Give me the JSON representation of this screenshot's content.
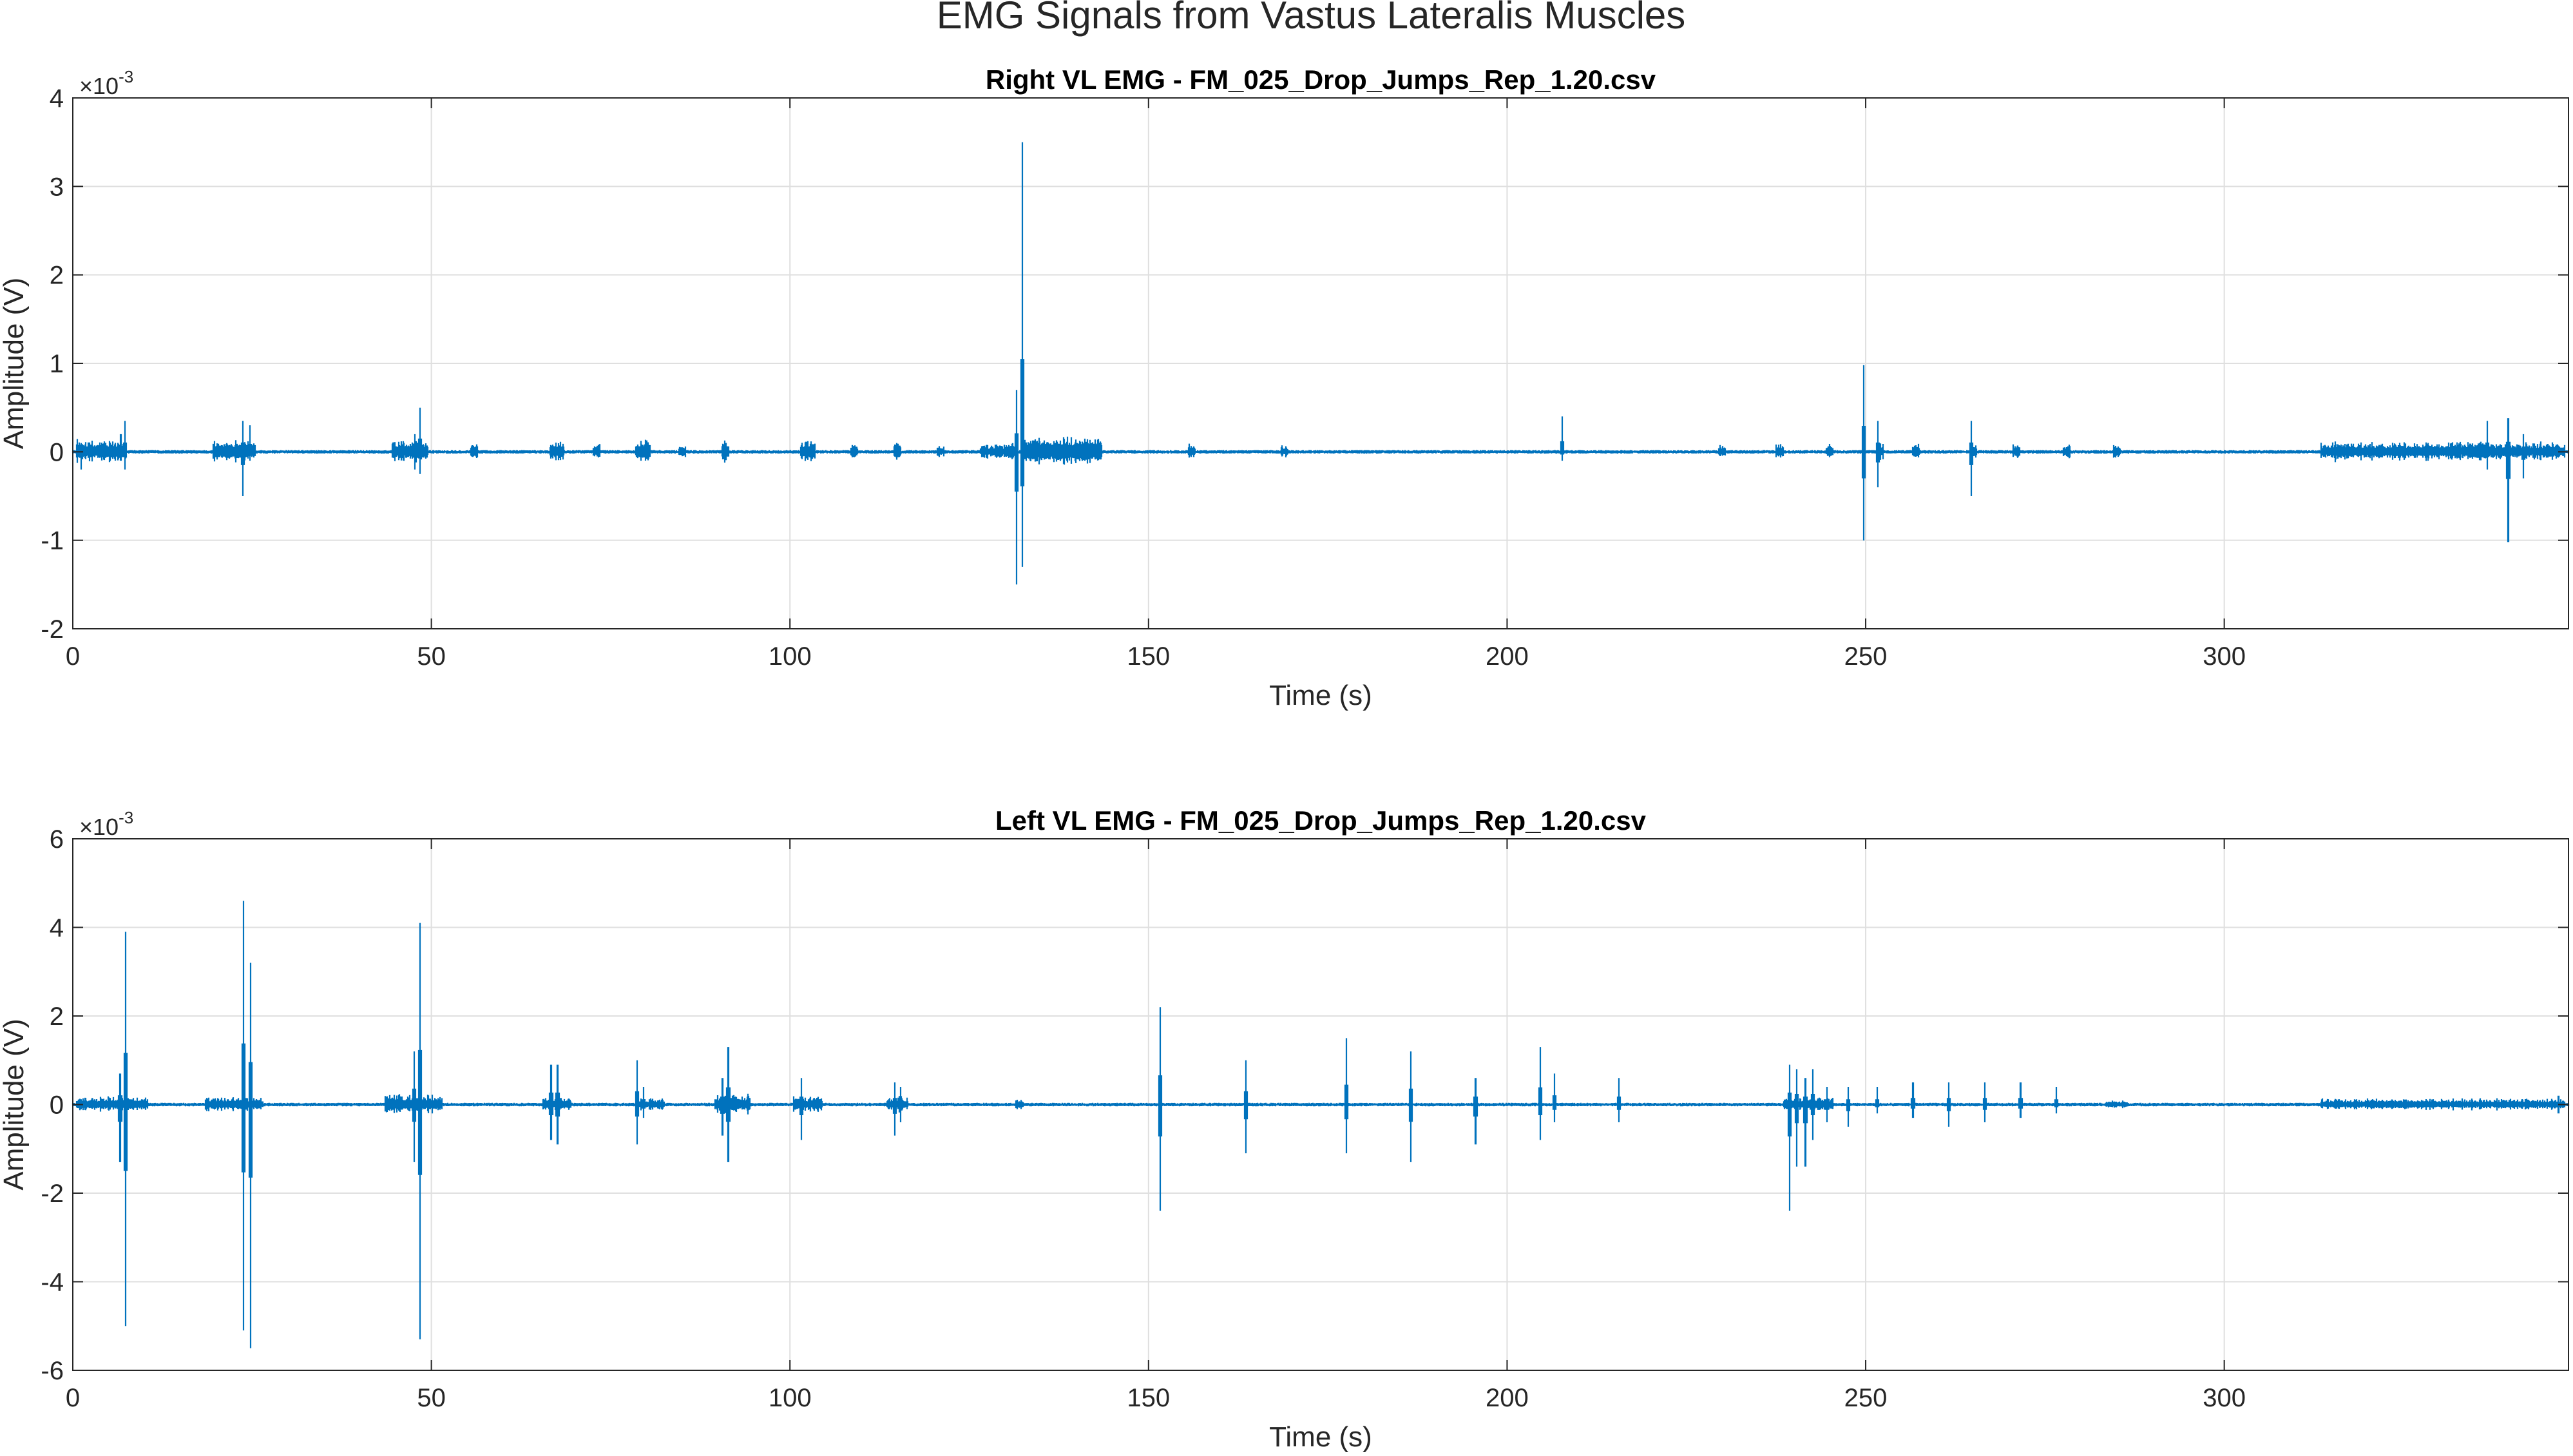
{
  "figure_title": "EMG Signals from Vastus Lateralis Muscles",
  "line_color": "#0072BD",
  "chart_data": [
    {
      "type": "line",
      "title": "Right VL EMG - FM_025_Drop_Jumps_Rep_1.20.csv",
      "xlabel": "Time (s)",
      "ylabel": "Amplitude (V)",
      "xlim": [
        0,
        348
      ],
      "ylim": [
        -0.002,
        0.004
      ],
      "y_exponent_label": "×10⁻³",
      "y_exponent_base": "×10",
      "y_exponent_power": "-3",
      "x_ticks": [
        {
          "value": 0,
          "label": "0"
        },
        {
          "value": 50,
          "label": "50"
        },
        {
          "value": 100,
          "label": "100"
        },
        {
          "value": 150,
          "label": "150"
        },
        {
          "value": 200,
          "label": "200"
        },
        {
          "value": 250,
          "label": "250"
        },
        {
          "value": 300,
          "label": "300"
        }
      ],
      "y_ticks": [
        {
          "value": -0.002,
          "label": "-2"
        },
        {
          "value": -0.001,
          "label": "-1"
        },
        {
          "value": 0,
          "label": "0"
        },
        {
          "value": 0.001,
          "label": "1"
        },
        {
          "value": 0.002,
          "label": "2"
        },
        {
          "value": 0.003,
          "label": "3"
        },
        {
          "value": 0.004,
          "label": "4"
        }
      ],
      "grid": true,
      "noise_amplitude": 2e-05,
      "activity_bursts": [
        {
          "start": 0.5,
          "end": 7.5,
          "amp": 0.00015
        },
        {
          "start": 19.5,
          "end": 25.5,
          "amp": 0.00015
        },
        {
          "start": 44.5,
          "end": 49.5,
          "amp": 0.00015
        },
        {
          "start": 55.5,
          "end": 56.5,
          "amp": 0.00012
        },
        {
          "start": 66.5,
          "end": 68.5,
          "amp": 0.00015
        },
        {
          "start": 72.5,
          "end": 73.5,
          "amp": 0.0001
        },
        {
          "start": 78.5,
          "end": 80.5,
          "amp": 0.00015
        },
        {
          "start": 84.5,
          "end": 85.5,
          "amp": 0.0001
        },
        {
          "start": 90.5,
          "end": 91.5,
          "amp": 0.00015
        },
        {
          "start": 101.5,
          "end": 103.5,
          "amp": 0.00015
        },
        {
          "start": 108.5,
          "end": 109.5,
          "amp": 0.0001
        },
        {
          "start": 114.5,
          "end": 115.5,
          "amp": 0.00012
        },
        {
          "start": 120.5,
          "end": 121.5,
          "amp": 0.0001
        },
        {
          "start": 126.5,
          "end": 131.5,
          "amp": 0.0001
        },
        {
          "start": 132.5,
          "end": 143.5,
          "amp": 0.0002
        },
        {
          "start": 155.5,
          "end": 156.5,
          "amp": 0.0001
        },
        {
          "start": 168.5,
          "end": 169.5,
          "amp": 8e-05
        },
        {
          "start": 229.5,
          "end": 230.5,
          "amp": 0.0001
        },
        {
          "start": 237.5,
          "end": 238.5,
          "amp": 0.0001
        },
        {
          "start": 244.5,
          "end": 245.5,
          "amp": 0.0001
        },
        {
          "start": 251.5,
          "end": 252.5,
          "amp": 0.0001
        },
        {
          "start": 256.5,
          "end": 257.5,
          "amp": 0.0001
        },
        {
          "start": 264.5,
          "end": 265.5,
          "amp": 0.0001
        },
        {
          "start": 270.5,
          "end": 271.5,
          "amp": 0.0001
        },
        {
          "start": 277.5,
          "end": 278.5,
          "amp": 0.0001
        },
        {
          "start": 284.5,
          "end": 285.5,
          "amp": 0.0001
        },
        {
          "start": 313.5,
          "end": 347.5,
          "amp": 0.00012
        }
      ],
      "spikes": [
        {
          "x": 1.2,
          "max": 0.0001,
          "min": -0.0002
        },
        {
          "x": 6.7,
          "max": 0.0002,
          "min": -0.0001
        },
        {
          "x": 7.3,
          "max": 0.00035,
          "min": -0.0002
        },
        {
          "x": 23.7,
          "max": 0.00035,
          "min": -0.0005
        },
        {
          "x": 24.7,
          "max": 0.0003,
          "min": -0.0001
        },
        {
          "x": 47.7,
          "max": 0.0002,
          "min": -0.0002
        },
        {
          "x": 48.4,
          "max": 0.0005,
          "min": -0.00025
        },
        {
          "x": 131.6,
          "max": 0.0007,
          "min": -0.0015
        },
        {
          "x": 132.4,
          "max": 0.0035,
          "min": -0.0013
        },
        {
          "x": 207.7,
          "max": 0.0004,
          "min": -0.0001
        },
        {
          "x": 249.7,
          "max": 0.00098,
          "min": -0.001
        },
        {
          "x": 251.7,
          "max": 0.00035,
          "min": -0.0004
        },
        {
          "x": 264.7,
          "max": 0.00035,
          "min": -0.0005
        },
        {
          "x": 336.7,
          "max": 0.00035,
          "min": -0.0002
        },
        {
          "x": 339.6,
          "max": 0.00038,
          "min": -0.00102
        },
        {
          "x": 341.7,
          "max": 0.0002,
          "min": -0.0003
        }
      ]
    },
    {
      "type": "line",
      "title": "Left VL EMG - FM_025_Drop_Jumps_Rep_1.20.csv",
      "xlabel": "Time (s)",
      "ylabel": "Amplitude (V)",
      "xlim": [
        0,
        348
      ],
      "ylim": [
        -0.006,
        0.006
      ],
      "y_exponent_label": "×10⁻³",
      "y_exponent_base": "×10",
      "y_exponent_power": "-3",
      "x_ticks": [
        {
          "value": 0,
          "label": "0"
        },
        {
          "value": 50,
          "label": "50"
        },
        {
          "value": 100,
          "label": "100"
        },
        {
          "value": 150,
          "label": "150"
        },
        {
          "value": 200,
          "label": "200"
        },
        {
          "value": 250,
          "label": "250"
        },
        {
          "value": 300,
          "label": "300"
        }
      ],
      "y_ticks": [
        {
          "value": -0.006,
          "label": "-6"
        },
        {
          "value": -0.004,
          "label": "-4"
        },
        {
          "value": -0.002,
          "label": "-2"
        },
        {
          "value": 0,
          "label": "0"
        },
        {
          "value": 0.002,
          "label": "2"
        },
        {
          "value": 0.004,
          "label": "4"
        },
        {
          "value": 0.006,
          "label": "6"
        }
      ],
      "grid": true,
      "noise_amplitude": 4e-05,
      "activity_bursts": [
        {
          "start": 0.5,
          "end": 10.5,
          "amp": 0.0002
        },
        {
          "start": 18.5,
          "end": 26.5,
          "amp": 0.0002
        },
        {
          "start": 43.5,
          "end": 51.5,
          "amp": 0.00025
        },
        {
          "start": 65.5,
          "end": 69.5,
          "amp": 0.0002
        },
        {
          "start": 78.5,
          "end": 82.5,
          "amp": 0.00015
        },
        {
          "start": 89.5,
          "end": 94.5,
          "amp": 0.00025
        },
        {
          "start": 100.5,
          "end": 104.5,
          "amp": 0.0002
        },
        {
          "start": 113.5,
          "end": 116.5,
          "amp": 0.0002
        },
        {
          "start": 131.5,
          "end": 132.5,
          "amp": 0.00015
        },
        {
          "start": 238.5,
          "end": 245.5,
          "amp": 0.0002
        },
        {
          "start": 283.5,
          "end": 286.5,
          "amp": 0.00012
        },
        {
          "start": 313.5,
          "end": 347.5,
          "amp": 0.00015
        }
      ],
      "spikes": [
        {
          "x": 6.6,
          "max": 0.0007,
          "min": -0.0013
        },
        {
          "x": 7.4,
          "max": 0.0039,
          "min": -0.005
        },
        {
          "x": 23.8,
          "max": 0.0046,
          "min": -0.0051
        },
        {
          "x": 24.8,
          "max": 0.0032,
          "min": -0.0055
        },
        {
          "x": 47.6,
          "max": 0.0012,
          "min": -0.0013
        },
        {
          "x": 48.4,
          "max": 0.0041,
          "min": -0.0053
        },
        {
          "x": 66.7,
          "max": 0.0009,
          "min": -0.0008
        },
        {
          "x": 67.6,
          "max": 0.0009,
          "min": -0.0009
        },
        {
          "x": 78.7,
          "max": 0.001,
          "min": -0.0009
        },
        {
          "x": 79.6,
          "max": 0.0004,
          "min": -0.0003
        },
        {
          "x": 90.6,
          "max": 0.0006,
          "min": -0.0007
        },
        {
          "x": 91.4,
          "max": 0.0013,
          "min": -0.0013
        },
        {
          "x": 101.6,
          "max": 0.0006,
          "min": -0.0008
        },
        {
          "x": 114.6,
          "max": 0.0005,
          "min": -0.0007
        },
        {
          "x": 115.4,
          "max": 0.0004,
          "min": -0.0004
        },
        {
          "x": 151.6,
          "max": 0.0022,
          "min": -0.0024
        },
        {
          "x": 163.6,
          "max": 0.001,
          "min": -0.0011
        },
        {
          "x": 177.6,
          "max": 0.0015,
          "min": -0.0011
        },
        {
          "x": 186.6,
          "max": 0.0012,
          "min": -0.0013
        },
        {
          "x": 195.6,
          "max": 0.0006,
          "min": -0.0009
        },
        {
          "x": 204.6,
          "max": 0.0013,
          "min": -0.0008
        },
        {
          "x": 206.6,
          "max": 0.0007,
          "min": -0.0004
        },
        {
          "x": 215.6,
          "max": 0.0006,
          "min": -0.0004
        },
        {
          "x": 239.4,
          "max": 0.0009,
          "min": -0.0024
        },
        {
          "x": 240.4,
          "max": 0.0008,
          "min": -0.0014
        },
        {
          "x": 241.6,
          "max": 0.0006,
          "min": -0.0014
        },
        {
          "x": 242.6,
          "max": 0.0008,
          "min": -0.0008
        },
        {
          "x": 244.6,
          "max": 0.0004,
          "min": -0.0004
        },
        {
          "x": 247.6,
          "max": 0.0004,
          "min": -0.0005
        },
        {
          "x": 251.6,
          "max": 0.0004,
          "min": -0.0002
        },
        {
          "x": 256.6,
          "max": 0.0005,
          "min": -0.0003
        },
        {
          "x": 261.6,
          "max": 0.0005,
          "min": -0.0005
        },
        {
          "x": 266.6,
          "max": 0.0005,
          "min": -0.0004
        },
        {
          "x": 271.6,
          "max": 0.0005,
          "min": -0.0003
        },
        {
          "x": 276.6,
          "max": 0.0004,
          "min": -0.0002
        },
        {
          "x": 346.6,
          "max": 0.0002,
          "min": -0.0002
        }
      ]
    }
  ]
}
